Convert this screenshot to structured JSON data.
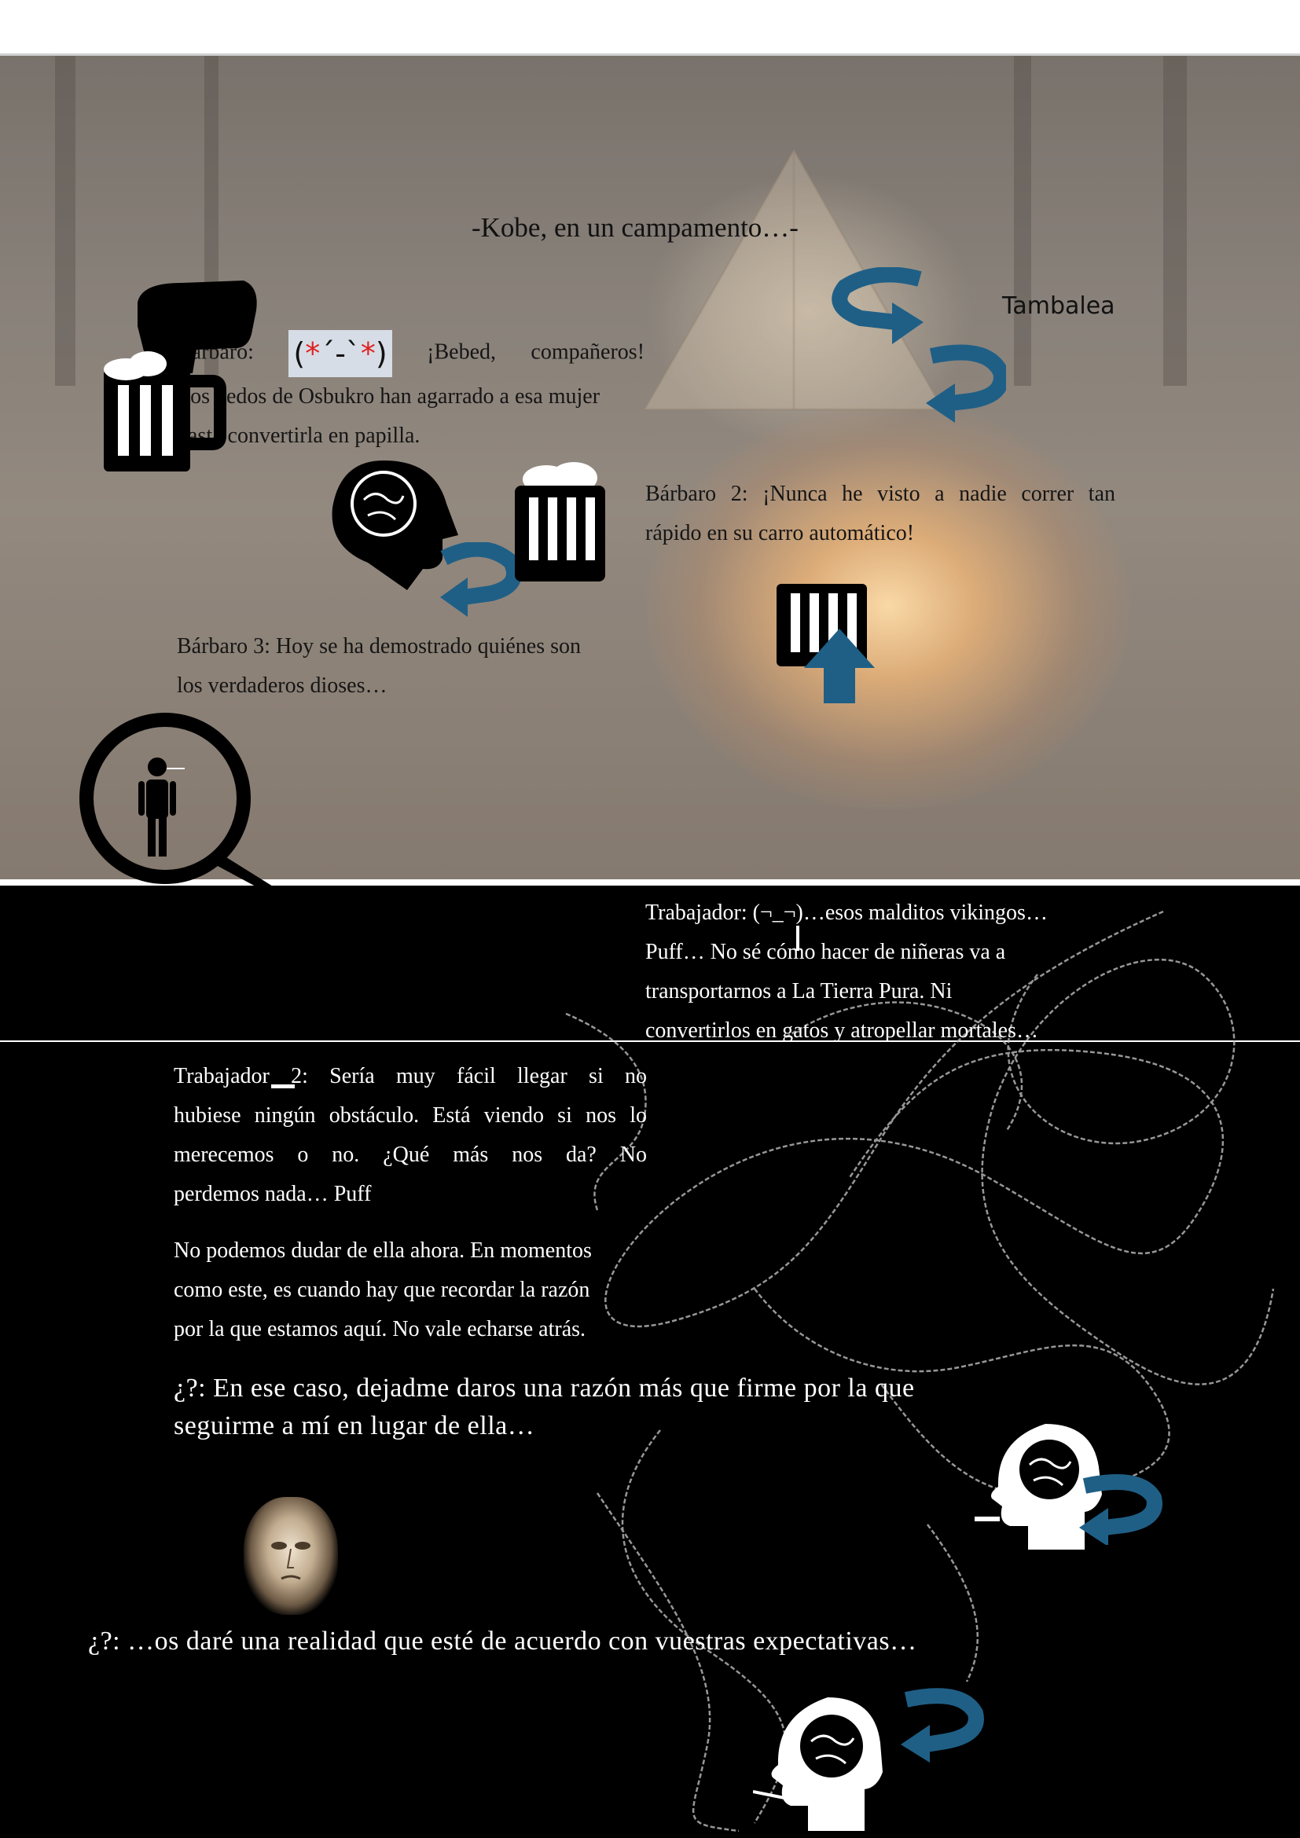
{
  "scene": {
    "title": "-Kobe, en un campamento…-",
    "sound_effect": "Tambalea"
  },
  "dialogue": {
    "barbaro1_speaker": "Bárbaro:",
    "barbaro1_emote": [
      "(",
      "*",
      "´-`",
      "*",
      ")"
    ],
    "barbaro1_line1_rest": "¡Bebed, compañeros!",
    "barbaro1_line2": "Los dedos de Osbukro han agarrado a esa mujer",
    "barbaro1_line3": "hasta convertirla en papilla.",
    "barbaro2_line1": "Bárbaro 2: ¡Nunca he visto a nadie correr tan",
    "barbaro2_line2": "rápido en su carro automático!",
    "barbaro3_line1": "Bárbaro 3: Hoy se ha demostrado quiénes son",
    "barbaro3_line2": "los verdaderos dioses…",
    "trabajador_line1": "Trabajador: (¬_¬)…esos malditos vikingos…",
    "trabajador_line2": "Puff… No sé cómo hacer de niñeras va a",
    "trabajador_line3": "transportarnos a La Tierra Pura. Ni",
    "trabajador_line4": "convertirlos en gatos y atropellar mortales…",
    "trabajador2_line1": "Trabajador 2: Sería muy fácil llegar si no",
    "trabajador2_line2": "hubiese ningún obstáculo. Está viendo si nos lo",
    "trabajador2_line3": "merecemos o no. ¿Qué más nos da? No",
    "trabajador2_line4": "perdemos nada… Puff",
    "para2_line1": "No podemos dudar de ella ahora. En momentos",
    "para2_line2": "como este, es cuando hay que recordar la razón",
    "para2_line3": "por la que estamos aquí. No vale echarse atrás.",
    "mystery1_line1": "¿?: En ese caso, dejadme daros una razón más que firme por la que",
    "mystery1_line2": "seguirme a mí en lugar de ella…",
    "mystery2": "¿?: …os daré una realidad que esté de acuerdo con vuestras expectativas…"
  },
  "colors": {
    "arrow_blue": "#1f5f86",
    "emote_red": "#e02020",
    "emote_bg": "#d7dde6"
  },
  "icons": [
    "beer-mug-icon",
    "flexed-arm-icon",
    "brain-head-icon",
    "rotate-arrow-icon",
    "up-arrow-icon",
    "magnifier-person-icon",
    "scribble-icon",
    "stone-face-image"
  ]
}
